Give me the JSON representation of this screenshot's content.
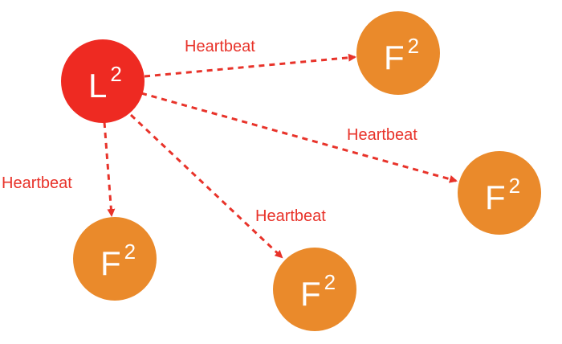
{
  "colors": {
    "leader": "#ee2a22",
    "follower": "#ea8a2b",
    "edge": "#e8332a",
    "label": "#e8332a",
    "node_text": "#ffffff"
  },
  "leader": {
    "letter": "L",
    "superscript": "2"
  },
  "followers": [
    {
      "letter": "F",
      "superscript": "2"
    },
    {
      "letter": "F",
      "superscript": "2"
    },
    {
      "letter": "F",
      "superscript": "2"
    },
    {
      "letter": "F",
      "superscript": "2"
    }
  ],
  "edges": [
    {
      "from": "leader",
      "to": 0,
      "label": "Heartbeat"
    },
    {
      "from": "leader",
      "to": 1,
      "label": "Heartbeat"
    },
    {
      "from": "leader",
      "to": 2,
      "label": "Heartbeat"
    },
    {
      "from": "leader",
      "to": 3,
      "label": "Heartbeat"
    }
  ]
}
